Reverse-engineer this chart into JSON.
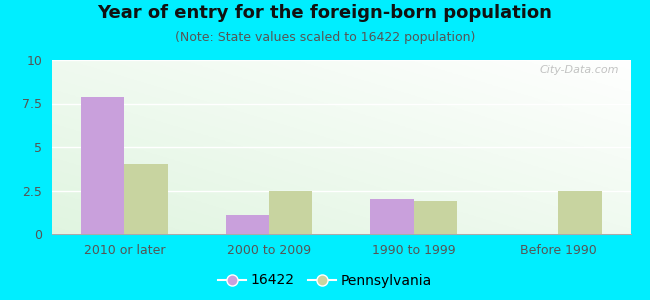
{
  "title": "Year of entry for the foreign-born population",
  "subtitle": "(Note: State values scaled to 16422 population)",
  "categories": [
    "2010 or later",
    "2000 to 2009",
    "1990 to 1999",
    "Before 1990"
  ],
  "values_16422": [
    7.9,
    1.1,
    2.0,
    0.0
  ],
  "values_pennsylvania": [
    4.0,
    2.5,
    1.9,
    2.5
  ],
  "color_16422": "#c9a0dc",
  "color_pennsylvania": "#c8d4a0",
  "background_outer": "#00eeff",
  "background_inner_top": "#e8f5e8",
  "background_inner_bottom": "#d0ede0",
  "ylim": [
    0,
    10
  ],
  "yticks": [
    0,
    2.5,
    5,
    7.5,
    10
  ],
  "ytick_labels": [
    "0",
    "2.5",
    "5",
    "7.5",
    "10"
  ],
  "legend_label_1": "16422",
  "legend_label_2": "Pennsylvania",
  "bar_width": 0.3,
  "title_fontsize": 13,
  "subtitle_fontsize": 9,
  "tick_fontsize": 9,
  "watermark": "City-Data.com"
}
